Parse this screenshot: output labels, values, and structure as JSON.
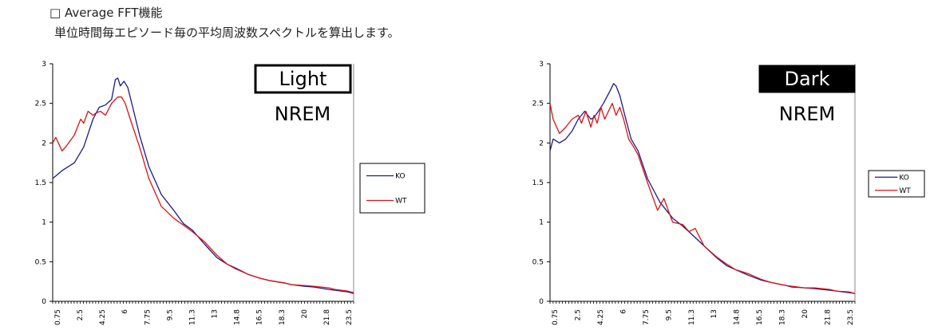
{
  "header": {
    "title": "□ Average FFT機能",
    "subtitle": "単位時間毎エピソード毎の平均周波数スペクトルを算出します。"
  },
  "chart_data": [
    {
      "type": "line",
      "title": "",
      "annotations": [
        "Light",
        "NREM"
      ],
      "y_ticks": [
        "0",
        "0.5",
        "1",
        "1.5",
        "2",
        "2.5",
        "3"
      ],
      "x_tick_labels": [
        "0.75",
        "2.5",
        "4.25",
        "6",
        "7.75",
        "9.5",
        "11.3",
        "13",
        "14.8",
        "16.5",
        "18.3",
        "20",
        "21.8",
        "23.5"
      ],
      "ylim": [
        0,
        3
      ],
      "xlim": [
        0.75,
        25
      ],
      "legend_position": "right",
      "grid": false,
      "series": [
        {
          "name": "KO",
          "color": "#1a1a8c",
          "x": [
            0.75,
            1.5,
            2.5,
            3.25,
            4.0,
            4.5,
            5.0,
            5.5,
            5.8,
            6.0,
            6.2,
            6.5,
            6.8,
            7.2,
            7.75,
            8.5,
            9.5,
            10.5,
            11.3,
            12.0,
            13.0,
            14.0,
            14.8,
            15.5,
            16.5,
            17.5,
            18.3,
            19.5,
            20.0,
            21.0,
            21.8,
            23.0,
            23.5,
            24.5,
            25.0
          ],
          "y": [
            1.55,
            1.65,
            1.75,
            1.95,
            2.3,
            2.45,
            2.48,
            2.55,
            2.8,
            2.82,
            2.72,
            2.78,
            2.7,
            2.45,
            2.1,
            1.7,
            1.35,
            1.15,
            0.98,
            0.9,
            0.72,
            0.55,
            0.47,
            0.42,
            0.34,
            0.29,
            0.26,
            0.23,
            0.21,
            0.19,
            0.18,
            0.15,
            0.14,
            0.12,
            0.1
          ]
        },
        {
          "name": "WT",
          "color": "#e01010",
          "x": [
            0.75,
            1.0,
            1.5,
            1.8,
            2.5,
            3.0,
            3.25,
            3.6,
            4.0,
            4.25,
            4.6,
            5.0,
            5.5,
            5.8,
            6.0,
            6.3,
            6.6,
            7.0,
            7.75,
            8.5,
            9.5,
            10.5,
            11.3,
            12.0,
            13.0,
            14.0,
            14.8,
            15.5,
            16.5,
            17.5,
            18.3,
            19.5,
            20.0,
            21.0,
            21.8,
            23.0,
            23.5,
            24.5,
            25.0
          ],
          "y": [
            2.0,
            2.07,
            1.9,
            1.95,
            2.1,
            2.3,
            2.25,
            2.4,
            2.35,
            2.38,
            2.4,
            2.35,
            2.5,
            2.55,
            2.58,
            2.58,
            2.5,
            2.3,
            1.95,
            1.55,
            1.2,
            1.05,
            0.96,
            0.88,
            0.75,
            0.58,
            0.47,
            0.41,
            0.34,
            0.29,
            0.26,
            0.23,
            0.21,
            0.2,
            0.19,
            0.17,
            0.15,
            0.13,
            0.11
          ]
        }
      ]
    },
    {
      "type": "line",
      "title": "",
      "annotations": [
        "Dark",
        "NREM"
      ],
      "y_ticks": [
        "0",
        "0.5",
        "1",
        "1.5",
        "2",
        "2.5",
        "3"
      ],
      "x_tick_labels": [
        "0.75",
        "2.5",
        "4.25",
        "6",
        "7.75",
        "9.5",
        "11.3",
        "13",
        "14.8",
        "16.5",
        "18.3",
        "20",
        "21.8",
        "23.5"
      ],
      "ylim": [
        0,
        3
      ],
      "xlim": [
        0.75,
        25
      ],
      "legend_position": "right",
      "grid": false,
      "series": [
        {
          "name": "KO",
          "color": "#1a1a8c",
          "x": [
            0.75,
            1.0,
            1.5,
            2.0,
            2.5,
            3.0,
            3.5,
            4.0,
            4.25,
            4.6,
            5.0,
            5.5,
            5.8,
            6.0,
            6.3,
            6.7,
            7.2,
            7.75,
            8.5,
            9.5,
            10.5,
            11.3,
            12.0,
            13.0,
            14.0,
            14.8,
            15.5,
            16.5,
            17.5,
            18.3,
            19.5,
            20.0,
            21.0,
            21.8,
            23.0,
            23.5,
            24.5,
            25.0
          ],
          "y": [
            1.9,
            2.05,
            2.0,
            2.05,
            2.15,
            2.3,
            2.4,
            2.3,
            2.32,
            2.4,
            2.5,
            2.65,
            2.75,
            2.72,
            2.6,
            2.35,
            2.05,
            1.9,
            1.55,
            1.25,
            1.05,
            0.95,
            0.85,
            0.7,
            0.55,
            0.45,
            0.4,
            0.33,
            0.27,
            0.24,
            0.2,
            0.18,
            0.17,
            0.16,
            0.14,
            0.13,
            0.11,
            0.1
          ]
        },
        {
          "name": "WT",
          "color": "#e01010",
          "x": [
            0.75,
            1.0,
            1.5,
            2.0,
            2.5,
            3.0,
            3.25,
            3.6,
            4.0,
            4.25,
            4.5,
            4.8,
            5.1,
            5.4,
            5.7,
            6.0,
            6.3,
            6.6,
            7.0,
            7.4,
            7.75,
            8.5,
            9.3,
            9.8,
            10.5,
            11.3,
            11.8,
            12.3,
            13.0,
            14.0,
            14.8,
            15.5,
            16.5,
            17.5,
            18.3,
            19.5,
            20.0,
            21.0,
            21.8,
            23.0,
            23.5,
            24.5,
            25.0
          ],
          "y": [
            2.5,
            2.3,
            2.12,
            2.2,
            2.3,
            2.35,
            2.25,
            2.4,
            2.2,
            2.35,
            2.25,
            2.45,
            2.3,
            2.4,
            2.5,
            2.35,
            2.45,
            2.3,
            2.05,
            1.95,
            1.85,
            1.5,
            1.15,
            1.3,
            1.0,
            0.97,
            0.88,
            0.92,
            0.7,
            0.56,
            0.47,
            0.4,
            0.35,
            0.28,
            0.24,
            0.2,
            0.19,
            0.17,
            0.17,
            0.15,
            0.13,
            0.12,
            0.1
          ]
        }
      ]
    }
  ]
}
